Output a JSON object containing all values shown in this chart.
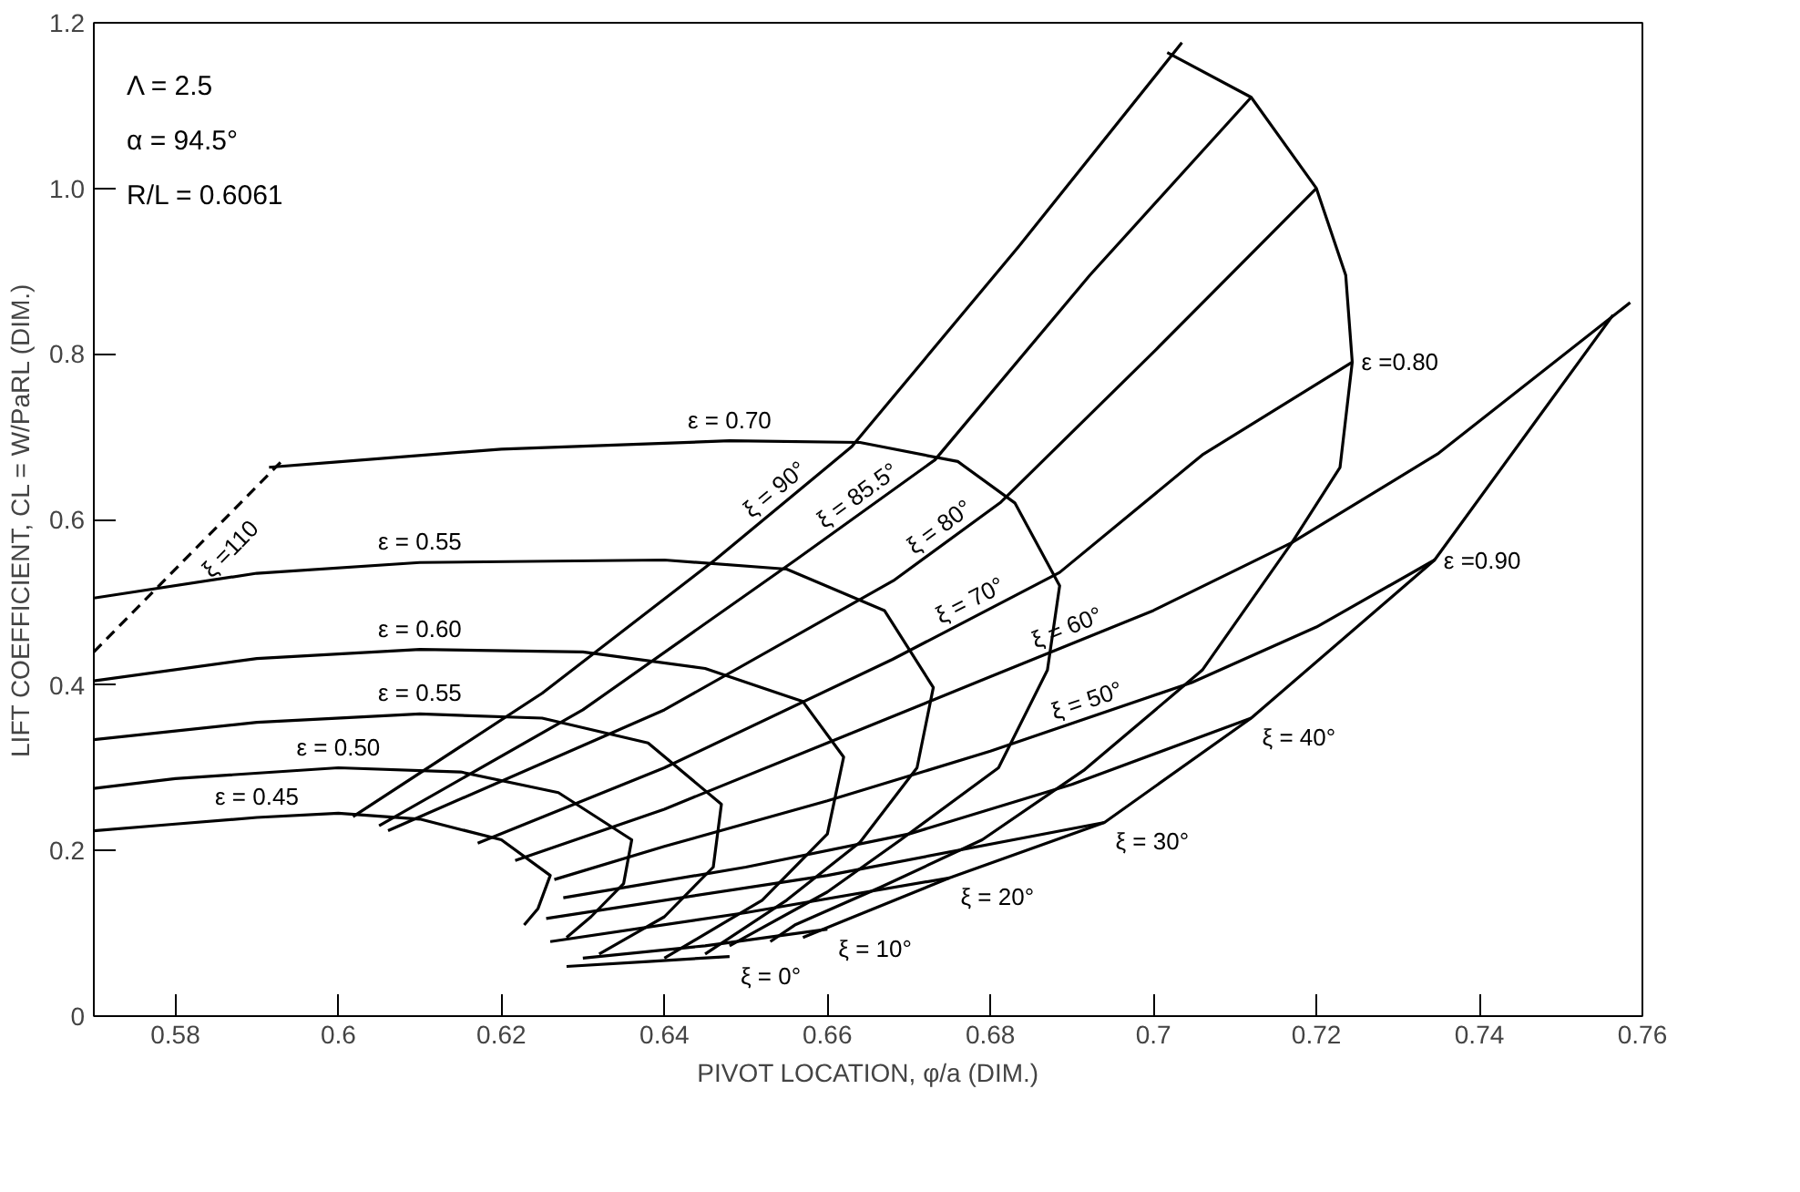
{
  "chart_data": {
    "type": "line",
    "xlabel": "PIVOT LOCATION, φ/a (DIM.)",
    "ylabel": "LIFT COEFFICIENT, CL = W/PaRL (DIM.)",
    "xlim": [
      0.57,
      0.76
    ],
    "ylim": [
      0,
      1.2
    ],
    "xticks": [
      0.58,
      0.6,
      0.62,
      0.64,
      0.66,
      0.68,
      0.7,
      0.72,
      0.74,
      0.76
    ],
    "yticks": [
      {
        "value": 0,
        "label": "0"
      },
      0.2,
      0.4,
      0.6,
      0.8,
      {
        "value": 1.0,
        "label": "1.0"
      },
      1.2
    ],
    "grid": false,
    "legend": false,
    "marker": "none",
    "line_style": "solid",
    "annotations": [
      "Λ = 2.5",
      "α = 94.5°",
      "R/L = 0.6061"
    ],
    "series": [
      {
        "name": "ε = 0.45",
        "color": "#000000",
        "x": [
          0.57,
          0.58,
          0.59,
          0.6,
          0.61,
          0.62,
          0.626,
          0.6245,
          0.6228
        ],
        "values": [
          0.224,
          0.232,
          0.24,
          0.245,
          0.238,
          0.213,
          0.17,
          0.13,
          0.11
        ]
      },
      {
        "name": "ε = 0.50",
        "color": "#000000",
        "x": [
          0.57,
          0.58,
          0.6,
          0.615,
          0.627,
          0.636,
          0.635,
          0.631,
          0.628
        ],
        "values": [
          0.275,
          0.287,
          0.3,
          0.295,
          0.27,
          0.213,
          0.16,
          0.12,
          0.095
        ]
      },
      {
        "name": "ε = 0.55",
        "color": "#000000",
        "x": [
          0.57,
          0.59,
          0.61,
          0.625,
          0.638,
          0.647,
          0.646,
          0.64,
          0.632
        ],
        "values": [
          0.334,
          0.355,
          0.365,
          0.36,
          0.33,
          0.256,
          0.18,
          0.12,
          0.075
        ]
      },
      {
        "name": "ε = 0.60",
        "color": "#000000",
        "x": [
          0.57,
          0.59,
          0.61,
          0.63,
          0.645,
          0.657,
          0.662,
          0.66,
          0.652,
          0.64
        ],
        "values": [
          0.405,
          0.432,
          0.443,
          0.44,
          0.42,
          0.38,
          0.313,
          0.22,
          0.14,
          0.07
        ]
      },
      {
        "name": "ε = 0.55",
        "color": "#000000",
        "x": [
          0.57,
          0.59,
          0.61,
          0.64,
          0.655,
          0.667,
          0.673,
          0.671,
          0.664,
          0.655,
          0.645
        ],
        "values": [
          0.505,
          0.535,
          0.548,
          0.551,
          0.54,
          0.49,
          0.397,
          0.3,
          0.21,
          0.14,
          0.075
        ]
      },
      {
        "name": "ε = 0.70",
        "color": "#000000",
        "x": [
          0.5915,
          0.62,
          0.648,
          0.664,
          0.676,
          0.683,
          0.6885,
          0.687,
          0.681,
          0.669,
          0.66,
          0.648
        ],
        "values": [
          0.663,
          0.685,
          0.695,
          0.693,
          0.67,
          0.62,
          0.52,
          0.418,
          0.3,
          0.213,
          0.15,
          0.085
        ]
      },
      {
        "name": "ε =0.80",
        "color": "#000000",
        "x": [
          0.7017,
          0.712,
          0.72,
          0.7236,
          0.7244,
          0.7229,
          0.717,
          0.706,
          0.6916,
          0.679,
          0.6666,
          0.656,
          0.653
        ],
        "values": [
          1.164,
          1.11,
          1.0,
          0.895,
          0.79,
          0.663,
          0.572,
          0.418,
          0.298,
          0.213,
          0.156,
          0.11,
          0.09
        ]
      },
      {
        "name": "ε =0.90",
        "color": "#000000",
        "x": [
          0.7564,
          0.747,
          0.7345,
          0.712,
          0.694,
          0.675,
          0.662,
          0.657
        ],
        "values": [
          0.847,
          0.72,
          0.551,
          0.36,
          0.234,
          0.167,
          0.115,
          0.095
        ]
      },
      {
        "name": "ξ = 0°",
        "color": "#000000",
        "x": [
          0.628,
          0.638,
          0.648
        ],
        "values": [
          0.06,
          0.066,
          0.072
        ]
      },
      {
        "name": "ξ = 10°",
        "color": "#000000",
        "x": [
          0.63,
          0.645,
          0.66
        ],
        "values": [
          0.07,
          0.085,
          0.105
        ]
      },
      {
        "name": "ξ = 20°",
        "color": "#000000",
        "x": [
          0.626,
          0.65,
          0.675
        ],
        "values": [
          0.09,
          0.125,
          0.167
        ]
      },
      {
        "name": "ξ = 30°",
        "color": "#000000",
        "x": [
          0.6255,
          0.66,
          0.694
        ],
        "values": [
          0.118,
          0.17,
          0.234
        ]
      },
      {
        "name": "ξ = 40°",
        "color": "#000000",
        "x": [
          0.6276,
          0.65,
          0.67,
          0.69,
          0.712
        ],
        "values": [
          0.143,
          0.18,
          0.22,
          0.28,
          0.36
        ]
      },
      {
        "name": "ξ = 50°",
        "color": "#000000",
        "x": [
          0.6265,
          0.64,
          0.66,
          0.68,
          0.7047,
          0.72,
          0.7345
        ],
        "values": [
          0.165,
          0.205,
          0.26,
          0.32,
          0.403,
          0.47,
          0.551
        ]
      },
      {
        "name": "ξ = 60°",
        "color": "#000000",
        "x": [
          0.6217,
          0.64,
          0.66,
          0.68,
          0.7,
          0.717,
          0.735,
          0.7585
        ],
        "values": [
          0.188,
          0.25,
          0.33,
          0.41,
          0.49,
          0.572,
          0.68,
          0.862
        ]
      },
      {
        "name": "ξ = 70°",
        "color": "#000000",
        "x": [
          0.6171,
          0.64,
          0.668,
          0.6885,
          0.706,
          0.7244
        ],
        "values": [
          0.209,
          0.3,
          0.431,
          0.536,
          0.678,
          0.79
        ]
      },
      {
        "name": "ξ = 80°",
        "color": "#000000",
        "x": [
          0.6061,
          0.64,
          0.6681,
          0.6813,
          0.7003,
          0.72
        ],
        "values": [
          0.224,
          0.37,
          0.526,
          0.621,
          0.805,
          1.0
        ]
      },
      {
        "name": "ξ = 85.5°",
        "color": "#000000",
        "x": [
          0.605,
          0.63,
          0.6561,
          0.6732,
          0.6922,
          0.712
        ],
        "values": [
          0.23,
          0.37,
          0.551,
          0.672,
          0.895,
          1.11
        ]
      },
      {
        "name": "ξ = 90°",
        "color": "#000000",
        "x": [
          0.6018,
          0.625,
          0.6462,
          0.663,
          0.6835,
          0.7035
        ],
        "values": [
          0.241,
          0.39,
          0.551,
          0.688,
          0.93,
          1.176
        ]
      },
      {
        "name": "ξ =110",
        "color": "#000000",
        "line_style": "dashed",
        "x": [
          0.57,
          0.5935
        ],
        "values": [
          0.44,
          0.675
        ]
      }
    ]
  }
}
